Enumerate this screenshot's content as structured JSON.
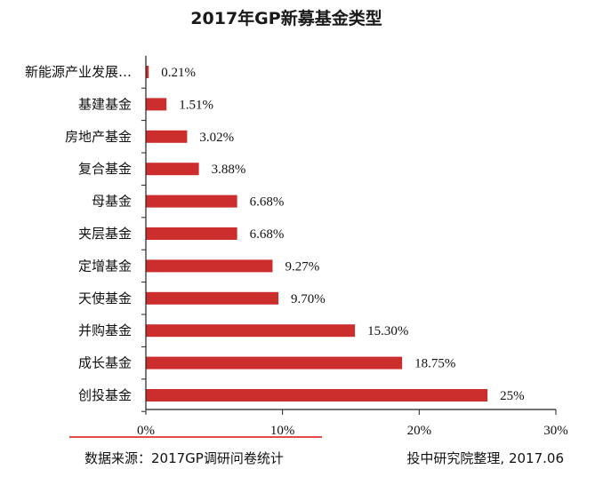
{
  "chart_data": {
    "type": "bar",
    "orientation": "horizontal",
    "title": "2017年GP新募基金类型",
    "categories": [
      "新能源产业发展…",
      "基建基金",
      "房地产基金",
      "复合基金",
      "母基金",
      "夹层基金",
      "定增基金",
      "天使基金",
      "并购基金",
      "成长基金",
      "创投基金"
    ],
    "values": [
      0.21,
      1.51,
      3.02,
      3.88,
      6.68,
      6.68,
      9.27,
      9.7,
      15.3,
      18.75,
      25
    ],
    "value_labels": [
      "0.21%",
      "1.51%",
      "3.02%",
      "3.88%",
      "6.68%",
      "6.68%",
      "9.27%",
      "9.70%",
      "15.30%",
      "18.75%",
      "25%"
    ],
    "xlim": [
      0,
      30
    ],
    "xticks": [
      0,
      10,
      20,
      30
    ],
    "xtick_labels": [
      "0%",
      "10%",
      "20%",
      "30%"
    ],
    "xlabel": "",
    "ylabel": "",
    "grid": false,
    "bar_color": "#cc2e2e"
  },
  "footer": {
    "source": "数据来源：2017GP调研问卷统计",
    "credit": "投中研究院整理, 2017.06",
    "accent_color": "#e34b4b"
  }
}
